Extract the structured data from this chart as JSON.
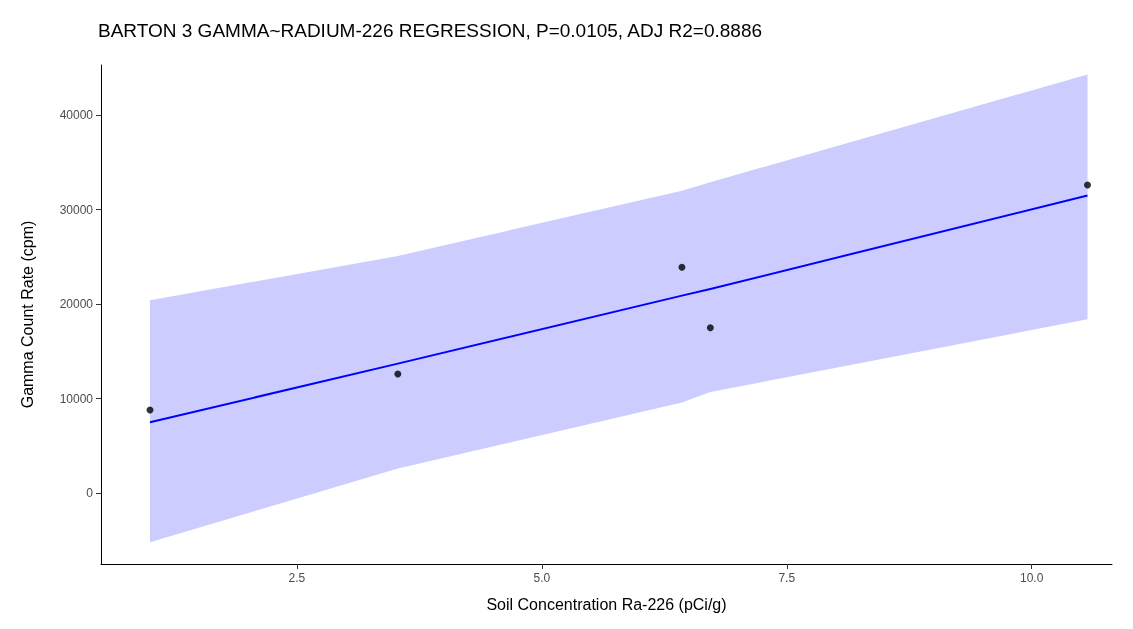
{
  "chart_data": {
    "type": "scatter",
    "title": "BARTON 3 GAMMA~RADIUM-226 REGRESSION, P=0.0105, ADJ R2=0.8886",
    "xlabel": "Soil Concentration Ra-226 (pCi/g)",
    "ylabel": "Gamma Count Rate (cpm)",
    "xlim": [
      0.5,
      10.82
    ],
    "ylim": [
      -7500,
      45300
    ],
    "xticks": [
      {
        "value": 2.5,
        "label": "2.5"
      },
      {
        "value": 5,
        "label": "5.0"
      },
      {
        "value": 7.5,
        "label": "7.5"
      },
      {
        "value": 10,
        "label": "10.0"
      }
    ],
    "yticks": [
      0,
      10000,
      20000,
      30000,
      40000
    ],
    "grid": false,
    "series": [
      {
        "color": "#000000",
        "x": [
          1.0,
          3.53,
          6.43,
          6.72,
          10.57
        ],
        "values": [
          8800,
          12600,
          23900,
          17500,
          32600
        ]
      },
      {
        "type": "line",
        "color": "#0000ff",
        "x": [
          1.0,
          3.53,
          6.43,
          6.72,
          10.57
        ],
        "values": [
          7500,
          13700,
          20900,
          21600,
          31500
        ],
        "lower": [
          -5200,
          2600,
          9600,
          10700,
          18400
        ],
        "upper": [
          20400,
          25100,
          32000,
          32900,
          44300
        ]
      }
    ]
  }
}
